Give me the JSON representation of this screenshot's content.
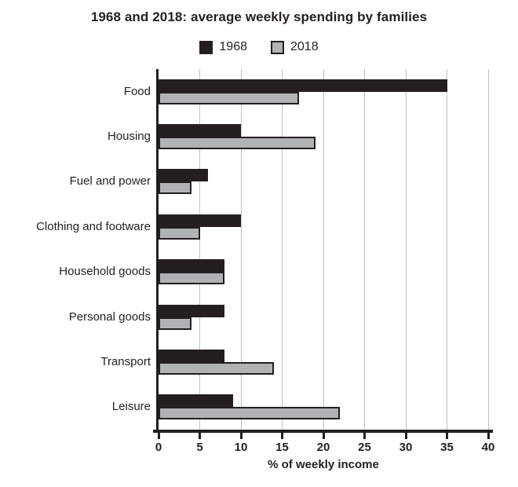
{
  "title": "1968 and 2018: average weekly spending by families",
  "colors": {
    "text": "#231f20",
    "axis": "#231f20",
    "gridline": "#c2c3c5",
    "series_1968": "#231f20",
    "series_2018": "#b0b2b4"
  },
  "chart_data": {
    "type": "bar",
    "orientation": "horizontal",
    "title": "1968 and 2018: average weekly spending by families",
    "categories": [
      "Food",
      "Housing",
      "Fuel and power",
      "Clothing and footware",
      "Household goods",
      "Personal goods",
      "Transport",
      "Leisure"
    ],
    "series": [
      {
        "name": "1968",
        "color": "#231f20",
        "values": [
          35,
          10,
          6,
          10,
          8,
          8,
          8,
          9
        ]
      },
      {
        "name": "2018",
        "color": "#b0b2b4",
        "values": [
          17,
          19,
          4,
          5,
          8,
          4,
          14,
          22
        ]
      }
    ],
    "xlabel": "% of weekly income",
    "xlim": [
      0,
      40
    ],
    "xticks": [
      0,
      5,
      10,
      15,
      20,
      25,
      30,
      35,
      40
    ],
    "grid": true,
    "legend_position": "top"
  }
}
